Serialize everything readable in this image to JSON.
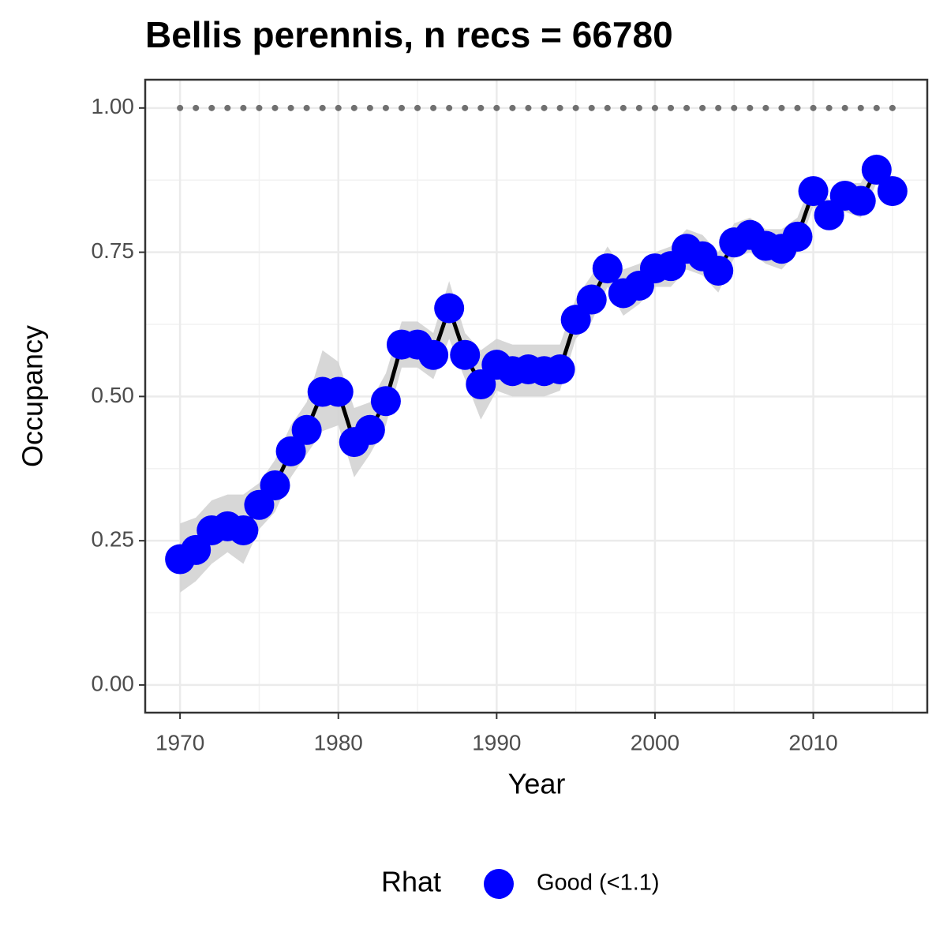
{
  "chart_data": {
    "type": "line",
    "title": "Bellis perennis, n recs = 66780",
    "x_label": "Year",
    "y_label": "Occupancy",
    "x": [
      1970,
      1971,
      1972,
      1973,
      1974,
      1975,
      1976,
      1977,
      1978,
      1979,
      1980,
      1981,
      1982,
      1983,
      1984,
      1985,
      1986,
      1987,
      1988,
      1989,
      1990,
      1991,
      1992,
      1993,
      1994,
      1995,
      1996,
      1997,
      1998,
      1999,
      2000,
      2001,
      2002,
      2003,
      2004,
      2005,
      2006,
      2007,
      2008,
      2009,
      2010,
      2011,
      2012,
      2013,
      2014,
      2015
    ],
    "series": [
      {
        "name": "Good (<1.1)",
        "color": "#0000ff",
        "line_color": "#000000",
        "band_color": "#d3d3d3",
        "values": [
          0.218,
          0.234,
          0.268,
          0.275,
          0.268,
          0.312,
          0.346,
          0.405,
          0.442,
          0.508,
          0.508,
          0.421,
          0.442,
          0.492,
          0.59,
          0.59,
          0.572,
          0.653,
          0.572,
          0.521,
          0.555,
          0.544,
          0.547,
          0.544,
          0.547,
          0.633,
          0.668,
          0.722,
          0.679,
          0.692,
          0.722,
          0.726,
          0.756,
          0.743,
          0.718,
          0.767,
          0.78,
          0.761,
          0.756,
          0.777,
          0.856,
          0.814,
          0.848,
          0.839,
          0.893,
          0.856
        ],
        "lower": [
          0.16,
          0.18,
          0.21,
          0.23,
          0.21,
          0.27,
          0.3,
          0.36,
          0.4,
          0.44,
          0.45,
          0.36,
          0.4,
          0.45,
          0.55,
          0.55,
          0.53,
          0.6,
          0.53,
          0.46,
          0.51,
          0.5,
          0.5,
          0.5,
          0.51,
          0.6,
          0.63,
          0.69,
          0.64,
          0.66,
          0.69,
          0.69,
          0.72,
          0.71,
          0.68,
          0.74,
          0.75,
          0.73,
          0.72,
          0.75,
          0.83,
          0.79,
          0.82,
          0.81,
          0.87,
          0.83
        ],
        "upper": [
          0.28,
          0.29,
          0.32,
          0.33,
          0.33,
          0.35,
          0.39,
          0.45,
          0.49,
          0.58,
          0.56,
          0.48,
          0.49,
          0.54,
          0.63,
          0.63,
          0.61,
          0.7,
          0.61,
          0.58,
          0.6,
          0.59,
          0.59,
          0.59,
          0.59,
          0.67,
          0.71,
          0.76,
          0.72,
          0.73,
          0.75,
          0.76,
          0.79,
          0.78,
          0.75,
          0.8,
          0.81,
          0.79,
          0.79,
          0.81,
          0.88,
          0.84,
          0.87,
          0.87,
          0.92,
          0.88
        ]
      }
    ],
    "reference_line": {
      "value": 1,
      "color": "#707070"
    },
    "legend_title": "Rhat",
    "legend": "bottom",
    "xlim": [
      1967.8,
      2017.2
    ],
    "ylim": [
      -0.048,
      1.049
    ],
    "xticks": [
      1970,
      1980,
      1990,
      2000,
      2010
    ],
    "yticks": [
      {
        "value": 0,
        "label": "0.00"
      },
      {
        "value": 0.25,
        "label": "0.25"
      },
      {
        "value": 0.5,
        "label": "0.50"
      },
      {
        "value": 0.75,
        "label": "0.75"
      },
      {
        "value": 1,
        "label": "1.00"
      }
    ],
    "grid": true
  }
}
